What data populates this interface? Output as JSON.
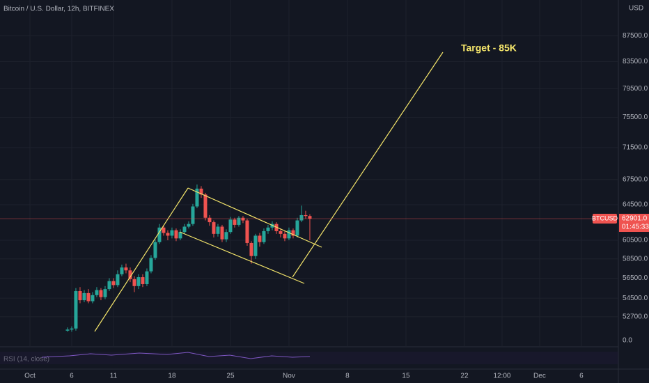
{
  "chart_data": {
    "type": "candlestick",
    "title": "Bitcoin / U.S. Dollar, 12h, BITFINEX",
    "annotation": "Target - 85K",
    "symbol": "BTCUSD",
    "currency": "USD",
    "last_price": {
      "value": 62901,
      "label": "62901.0"
    },
    "countdown": "01:45:33",
    "indicator": "RSI (14, close)",
    "indicator_scale_label": "0.0",
    "up_color": "#26a69a",
    "down_color": "#ef5350",
    "log_scale": true,
    "grid": true,
    "xlim": [
      -3.58,
      70.42
    ],
    "ylim": [
      49800,
      93300
    ],
    "xticks": [
      {
        "value": 0,
        "label": "Oct"
      },
      {
        "value": 5,
        "label": "6"
      },
      {
        "value": 10,
        "label": "11"
      },
      {
        "value": 17,
        "label": "18"
      },
      {
        "value": 24,
        "label": "25"
      },
      {
        "value": 31,
        "label": "Nov"
      },
      {
        "value": 38,
        "label": "8"
      },
      {
        "value": 45,
        "label": "15"
      },
      {
        "value": 52,
        "label": "22"
      },
      {
        "value": 56.5,
        "label": "12:00"
      },
      {
        "value": 61,
        "label": "Dec"
      },
      {
        "value": 66,
        "label": "6"
      }
    ],
    "yticks": [
      {
        "value": 87500,
        "label": "87500.0"
      },
      {
        "value": 83500,
        "label": "83500.0"
      },
      {
        "value": 79500,
        "label": "79500.0"
      },
      {
        "value": 75500,
        "label": "75500.0"
      },
      {
        "value": 71500,
        "label": "71500.0"
      },
      {
        "value": 67500,
        "label": "67500.0"
      },
      {
        "value": 64500,
        "label": "64500.0"
      },
      {
        "value": 60500,
        "label": "60500.0"
      },
      {
        "value": 58500,
        "label": "58500.0"
      },
      {
        "value": 56500,
        "label": "56500.0"
      },
      {
        "value": 54500,
        "label": "54500.0"
      },
      {
        "value": 52700,
        "label": "52700.0"
      }
    ],
    "x": [
      4.5,
      5,
      5.5,
      6,
      6.5,
      7,
      7.5,
      8,
      8.5,
      9,
      9.5,
      10,
      10.5,
      11,
      11.5,
      12,
      12.5,
      13,
      13.5,
      14,
      14.5,
      15,
      15.5,
      16,
      16.5,
      17,
      17.5,
      18,
      18.5,
      19,
      19.5,
      20,
      20.5,
      21,
      21.5,
      22,
      22.5,
      23,
      23.5,
      24,
      24.5,
      25,
      25.5,
      26,
      26.5,
      27,
      27.5,
      28,
      28.5,
      29,
      29.5,
      30,
      30.5,
      31,
      31.5,
      32,
      32.5,
      33,
      33.5
    ],
    "open": [
      51400,
      51500,
      51600,
      55200,
      54300,
      55000,
      54200,
      54800,
      55300,
      54600,
      55400,
      56200,
      55800,
      56900,
      57600,
      57300,
      56400,
      55700,
      56600,
      55900,
      57200,
      58600,
      60300,
      61900,
      61300,
      61000,
      61600,
      60700,
      61400,
      62000,
      62300,
      64300,
      66400,
      65700,
      63000,
      62500,
      61200,
      62000,
      60600,
      61400,
      62800,
      62200,
      63000,
      62700,
      60200,
      58800,
      61000,
      60300,
      61500,
      61900,
      62300,
      61500,
      61200,
      60700,
      61600,
      61000,
      62700,
      63300,
      63200
    ],
    "close": [
      51500,
      51600,
      55200,
      54300,
      55000,
      54200,
      54800,
      55300,
      54600,
      55400,
      56200,
      55800,
      56900,
      57600,
      57300,
      56400,
      55700,
      56600,
      55900,
      57200,
      58600,
      60300,
      61900,
      61300,
      61000,
      61600,
      60700,
      61400,
      62000,
      62300,
      64300,
      66400,
      65700,
      63000,
      62500,
      61200,
      62000,
      60600,
      61400,
      62800,
      62200,
      63000,
      62700,
      60200,
      58800,
      61000,
      60300,
      61500,
      61900,
      62300,
      61500,
      61200,
      60700,
      61600,
      61000,
      62700,
      63300,
      63200,
      62901
    ],
    "high": [
      51700,
      51800,
      55500,
      55600,
      55300,
      55400,
      55100,
      55600,
      55500,
      55700,
      56500,
      56500,
      57300,
      57900,
      58000,
      57600,
      56700,
      56900,
      56900,
      57500,
      58900,
      60600,
      62300,
      62200,
      61600,
      61900,
      61800,
      61700,
      62300,
      62600,
      64600,
      66900,
      66700,
      65900,
      63300,
      62700,
      62300,
      62200,
      61700,
      63100,
      63000,
      63200,
      63200,
      62900,
      60400,
      61200,
      61300,
      61800,
      62200,
      62600,
      62500,
      61800,
      61500,
      61900,
      61800,
      63000,
      64400,
      63800,
      63400
    ],
    "low": [
      51300,
      51300,
      51400,
      54000,
      54100,
      54000,
      54000,
      54600,
      54300,
      54400,
      55200,
      55500,
      55600,
      56700,
      57000,
      56100,
      55100,
      55400,
      55600,
      55700,
      57000,
      58400,
      60100,
      61000,
      60500,
      60700,
      60400,
      60500,
      61200,
      61800,
      62100,
      64100,
      65300,
      62700,
      62100,
      60800,
      60900,
      60300,
      60300,
      61200,
      61900,
      62000,
      62400,
      59900,
      58000,
      58500,
      59800,
      60100,
      61200,
      61600,
      61200,
      60800,
      60400,
      60500,
      60700,
      60800,
      62500,
      62900,
      60500
    ]
  }
}
